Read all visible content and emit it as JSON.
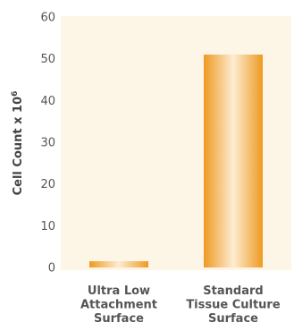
{
  "chart_data": {
    "type": "bar",
    "categories": [
      [
        "Ultra Low",
        "Attachment",
        "Surface"
      ],
      [
        "Standard",
        "Tissue Culture",
        "Surface"
      ]
    ],
    "values": [
      1.5,
      51
    ],
    "ylabel": "Cell Count x 10",
    "ylabel_superscript": "6",
    "ylim": [
      0,
      60
    ],
    "yticks": [
      "0",
      "10",
      "20",
      "30",
      "40",
      "50",
      "60"
    ],
    "grid": false,
    "colors": {
      "plot_background": "#fdf5e6",
      "bar_dark": "#ee9a22",
      "bar_light": "#fdecd2"
    }
  }
}
